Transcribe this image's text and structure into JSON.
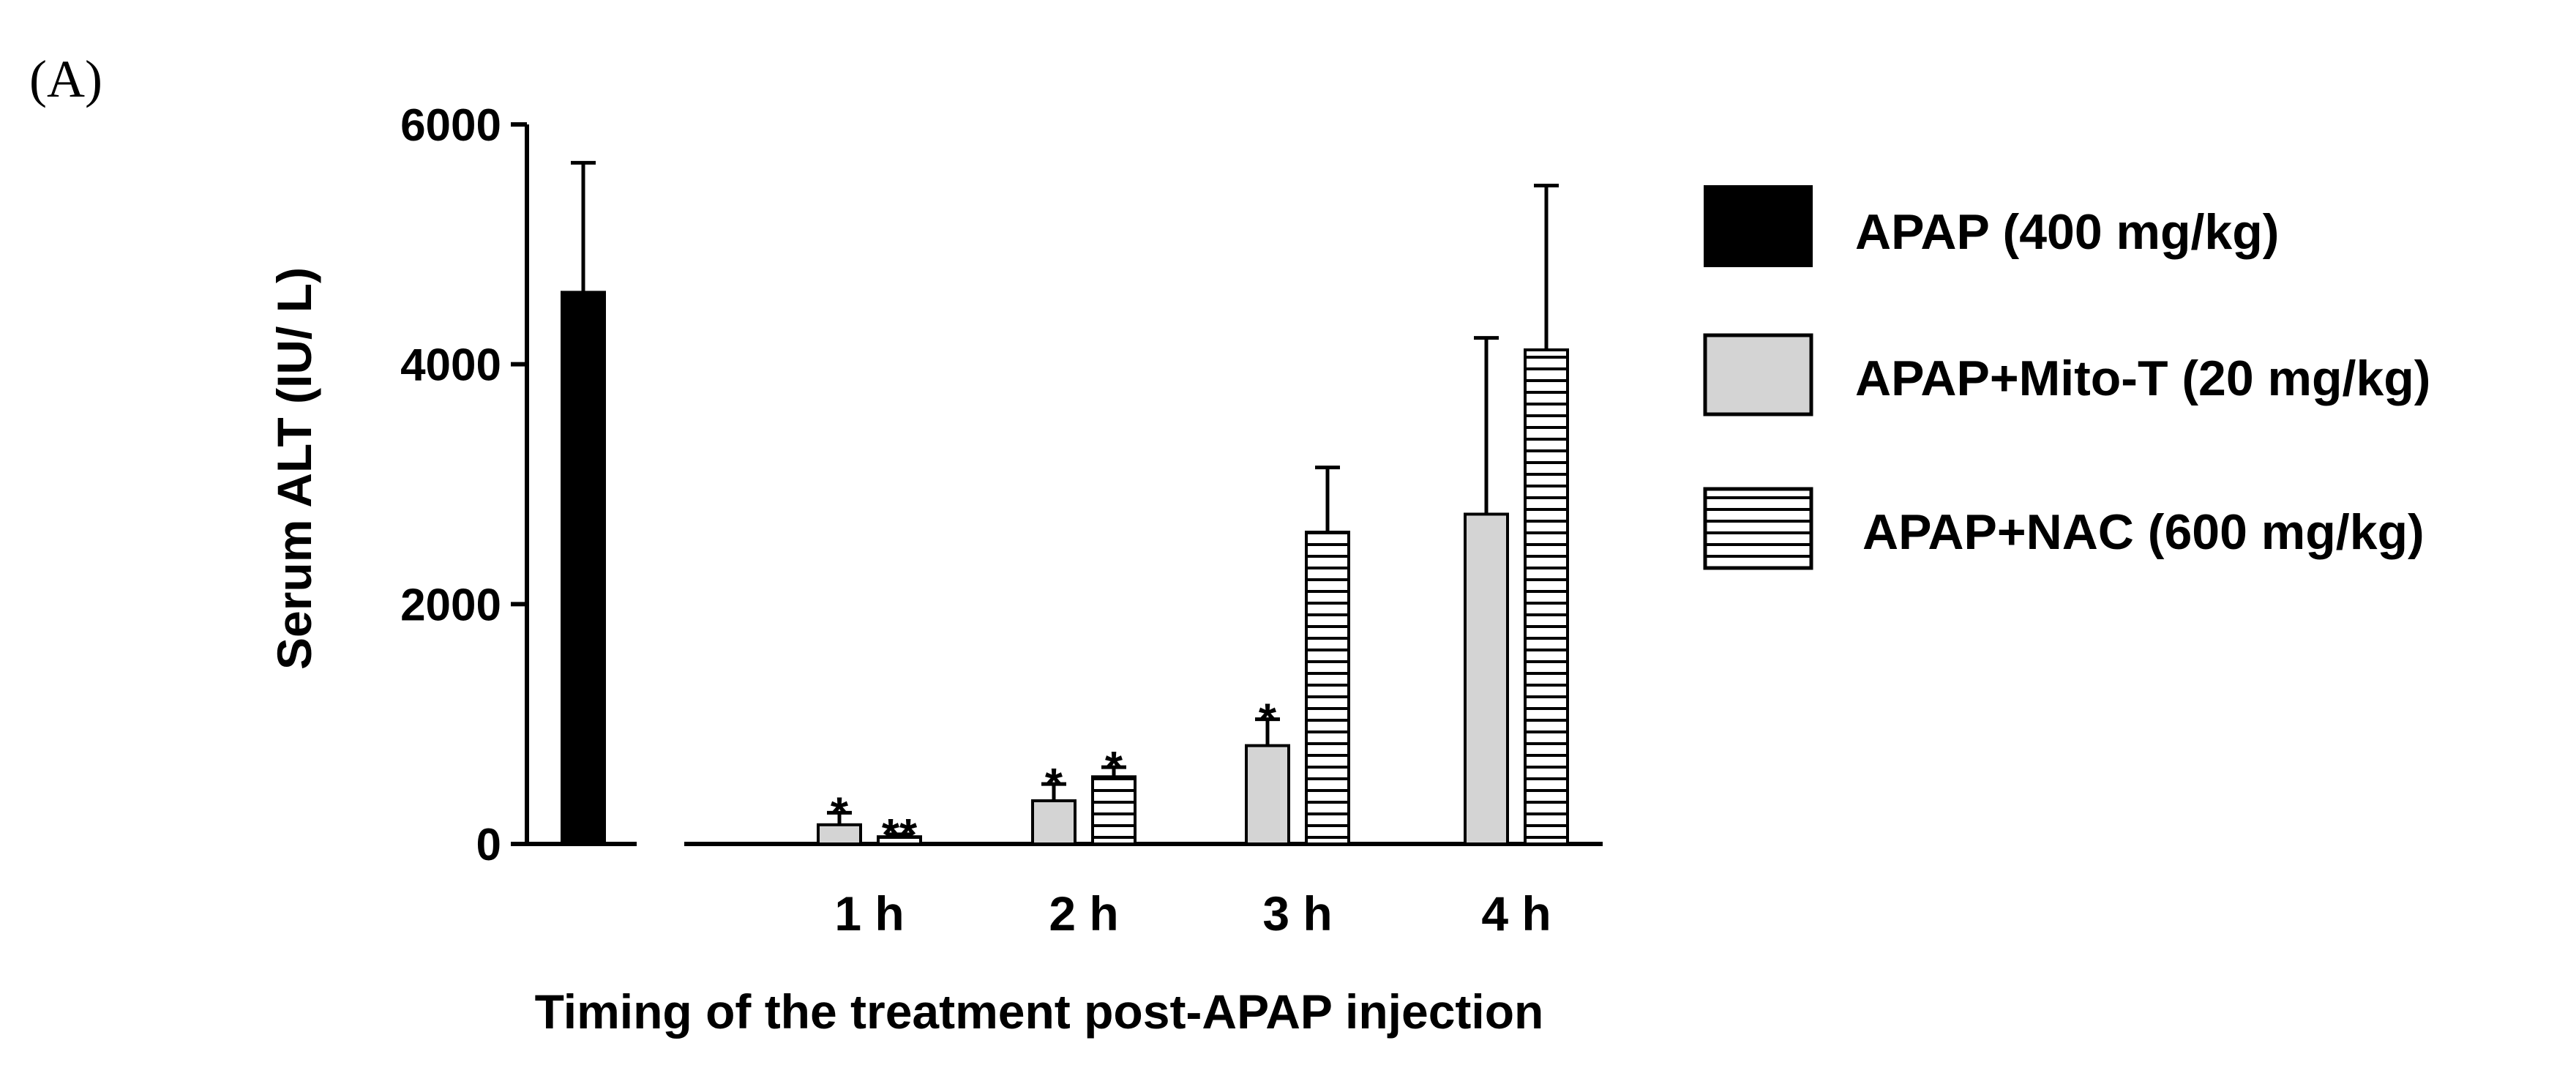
{
  "panel_label": "(A)",
  "chart_data": {
    "type": "bar",
    "title": "",
    "xlabel": "Timing of the  treatment post-APAP injection",
    "ylabel": "Serum ALT (IU/ L)",
    "ylim": [
      0,
      6000
    ],
    "yticks": [
      0,
      2000,
      4000,
      6000
    ],
    "ytick_labels": [
      "0",
      "2000",
      "4000",
      "6000"
    ],
    "categories": [
      "1 h",
      "2 h",
      "3 h",
      "4 h"
    ],
    "control": {
      "name": "APAP (400 mg/kg)",
      "value": 4600,
      "error": 1080,
      "color": "#000000"
    },
    "series": [
      {
        "name": "APAP+Mito-T (20 mg/kg)",
        "fill": "#d4d4d4",
        "pattern": "solid",
        "values": [
          160,
          360,
          820,
          2750
        ],
        "errors": [
          100,
          140,
          220,
          1470
        ],
        "significance": [
          "*",
          "*",
          "*",
          ""
        ]
      },
      {
        "name": "APAP+NAC (600 mg/kg)",
        "fill": "#ffffff",
        "pattern": "horizontal-stripes",
        "values": [
          60,
          560,
          2600,
          4120
        ],
        "errors": [
          20,
          80,
          540,
          1370
        ],
        "significance": [
          "**",
          "*",
          "",
          ""
        ]
      }
    ],
    "legend": {
      "position": "right",
      "entries": [
        "APAP (400 mg/kg)",
        "APAP+Mito-T (20 mg/kg)",
        "APAP+NAC (600 mg/kg)"
      ]
    },
    "grid": false
  }
}
